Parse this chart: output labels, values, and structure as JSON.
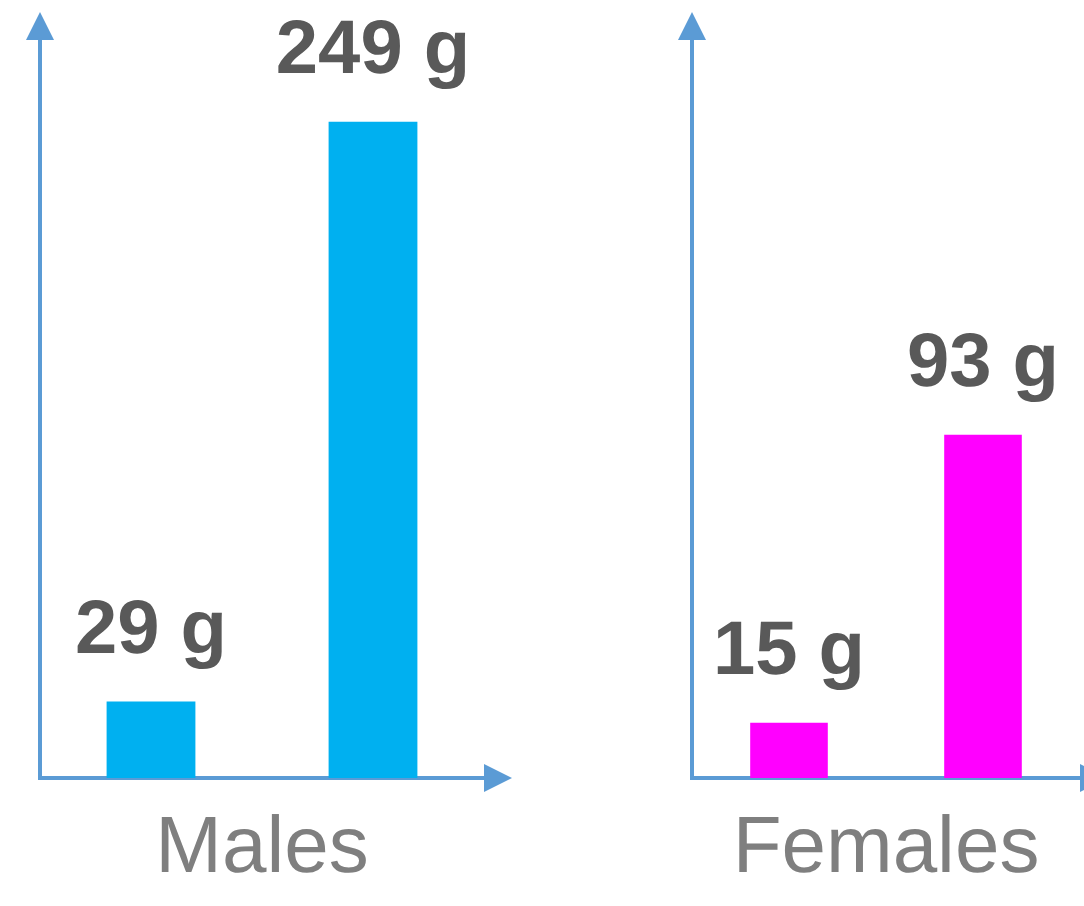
{
  "chart_data": [
    {
      "type": "bar",
      "categories": [
        null,
        null
      ],
      "values": [
        29,
        249
      ],
      "colors": [
        "#00b0f0",
        "#00b0f0"
      ],
      "value_labels": [
        "29 g",
        "249 g"
      ],
      "xlabel": "Males",
      "ylim": [
        0,
        280
      ],
      "grid": false,
      "tick_labels": false
    },
    {
      "type": "bar",
      "categories": [
        null,
        null
      ],
      "values": [
        15,
        93
      ],
      "colors": [
        "#ff00ff",
        "#ff00ff"
      ],
      "value_labels": [
        "15 g",
        "93 g"
      ],
      "xlabel": "Females",
      "ylim": [
        0,
        200
      ],
      "grid": false,
      "tick_labels": false
    }
  ]
}
